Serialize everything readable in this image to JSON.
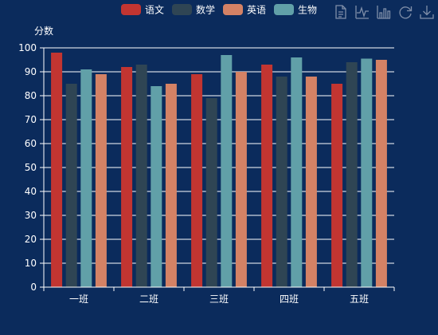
{
  "colors": {
    "background": "#0b2b5c",
    "axis": "#ffffff",
    "grid": "#ffffff",
    "text": "#ffffff",
    "toolbox": "#7f8ea8"
  },
  "toolbox": {
    "icons": [
      "data-view-icon",
      "line-chart-icon",
      "bar-chart-icon",
      "restore-icon",
      "save-image-icon"
    ]
  },
  "chart_data": {
    "type": "bar",
    "title": "",
    "xlabel": "",
    "ylabel": "分数",
    "categories": [
      "一班",
      "二班",
      "三班",
      "四班",
      "五班"
    ],
    "ylim": [
      0,
      100
    ],
    "yticks": [
      "0",
      "10",
      "20",
      "30",
      "40",
      "50",
      "60",
      "70",
      "80",
      "90",
      "100"
    ],
    "grid": true,
    "legend": "top-center",
    "series": [
      {
        "name": "语文",
        "color": "#c23531",
        "values": [
          98,
          92,
          89,
          93,
          85
        ]
      },
      {
        "name": "数学",
        "color": "#2f4554",
        "values": [
          85,
          93,
          79,
          88,
          94
        ]
      },
      {
        "name": "生物",
        "color": "#61a0a8",
        "values": [
          91,
          84,
          97,
          96,
          95.5
        ]
      },
      {
        "name": "英语",
        "color": "#d48265",
        "values": [
          89,
          85,
          90,
          88,
          95
        ]
      }
    ],
    "legend_order": [
      "语文",
      "数学",
      "英语",
      "生物"
    ]
  }
}
